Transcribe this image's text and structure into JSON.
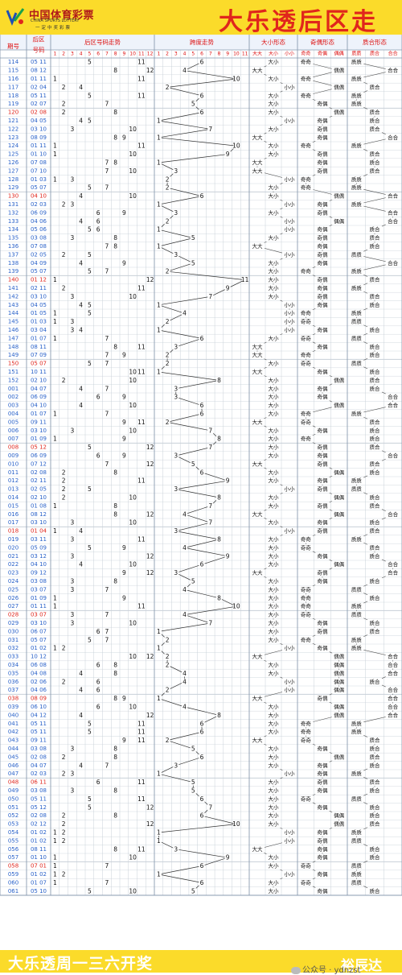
{
  "header": {
    "brand_cn": "中国体育彩票",
    "brand_en": "CHINA SPORTS LOTTERY",
    "slogan": "一定中奖彩票",
    "title": "大乐透后区走势"
  },
  "table": {
    "headers": {
      "period": "期号",
      "back": "后区号码",
      "trend": "后区号码走势",
      "span": "跨度走势",
      "size": "大小形态",
      "parity": "奇偶形态",
      "prime": "质合形态"
    },
    "trend_cols": [
      "1",
      "2",
      "3",
      "4",
      "5",
      "6",
      "7",
      "8",
      "9",
      "10",
      "11",
      "12"
    ],
    "span_cols": [
      "1",
      "2",
      "3",
      "4",
      "5",
      "6",
      "7",
      "8",
      "9",
      "10",
      "11"
    ],
    "size_cols": [
      "大大",
      "大小",
      "小小"
    ],
    "parity_cols": [
      "奇奇",
      "奇偶",
      "偶偶"
    ],
    "prime_cols": [
      "质质",
      "质合",
      "合合"
    ],
    "rows": [
      [
        "114",
        "05 11"
      ],
      [
        "115",
        "08 12"
      ],
      [
        "116",
        "01 11"
      ],
      [
        "117",
        "02 04"
      ],
      [
        "118",
        "05 11"
      ],
      [
        "119",
        "02 07"
      ],
      [
        "120",
        "02 08"
      ],
      [
        "121",
        "04 05"
      ],
      [
        "122",
        "03 10"
      ],
      [
        "123",
        "08 09"
      ],
      [
        "124",
        "01 11"
      ],
      [
        "125",
        "01 10"
      ],
      [
        "126",
        "07 08"
      ],
      [
        "127",
        "07 10"
      ],
      [
        "128",
        "01 03"
      ],
      [
        "129",
        "05 07"
      ],
      [
        "130",
        "04 10"
      ],
      [
        "131",
        "02 03"
      ],
      [
        "132",
        "06 09"
      ],
      [
        "133",
        "04 06"
      ],
      [
        "134",
        "05 06"
      ],
      [
        "135",
        "03 08"
      ],
      [
        "136",
        "07 08"
      ],
      [
        "137",
        "02 05"
      ],
      [
        "138",
        "04 09"
      ],
      [
        "139",
        "05 07"
      ],
      [
        "140",
        "01 12"
      ],
      [
        "141",
        "02 11"
      ],
      [
        "142",
        "03 10"
      ],
      [
        "143",
        "04 05"
      ],
      [
        "144",
        "01 05"
      ],
      [
        "145",
        "01 03"
      ],
      [
        "146",
        "03 04"
      ],
      [
        "147",
        "01 07"
      ],
      [
        "148",
        "08 11"
      ],
      [
        "149",
        "07 09"
      ],
      [
        "150",
        "05 07"
      ],
      [
        "151",
        "10 11"
      ],
      [
        "152",
        "02 10"
      ],
      [
        "001",
        "04 07"
      ],
      [
        "002",
        "06 09"
      ],
      [
        "003",
        "04 10"
      ],
      [
        "004",
        "01 07"
      ],
      [
        "005",
        "09 11"
      ],
      [
        "006",
        "03 10"
      ],
      [
        "007",
        "01 09"
      ],
      [
        "008",
        "05 12"
      ],
      [
        "009",
        "06 09"
      ],
      [
        "010",
        "07 12"
      ],
      [
        "011",
        "02 08"
      ],
      [
        "012",
        "02 11"
      ],
      [
        "013",
        "02 05"
      ],
      [
        "014",
        "02 10"
      ],
      [
        "015",
        "01 08"
      ],
      [
        "016",
        "08 12"
      ],
      [
        "017",
        "03 10"
      ],
      [
        "018",
        "01 04"
      ],
      [
        "019",
        "03 11"
      ],
      [
        "020",
        "05 09"
      ],
      [
        "021",
        "03 12"
      ],
      [
        "022",
        "04 10"
      ],
      [
        "023",
        "09 12"
      ],
      [
        "024",
        "03 08"
      ],
      [
        "025",
        "03 07"
      ],
      [
        "026",
        "01 09"
      ],
      [
        "027",
        "01 11"
      ],
      [
        "028",
        "03 07"
      ],
      [
        "029",
        "03 10"
      ],
      [
        "030",
        "06 07"
      ],
      [
        "031",
        "05 07"
      ],
      [
        "032",
        "01 02"
      ],
      [
        "033",
        "10 12"
      ],
      [
        "034",
        "06 08"
      ],
      [
        "035",
        "04 08"
      ],
      [
        "036",
        "02 06"
      ],
      [
        "037",
        "04 06"
      ],
      [
        "038",
        "08 09"
      ],
      [
        "039",
        "06 10"
      ],
      [
        "040",
        "04 12"
      ],
      [
        "041",
        "05 11"
      ],
      [
        "042",
        "05 11"
      ],
      [
        "043",
        "09 11"
      ],
      [
        "044",
        "03 08"
      ],
      [
        "045",
        "02 08"
      ],
      [
        "046",
        "04 07"
      ],
      [
        "047",
        "02 03"
      ],
      [
        "048",
        "06 11"
      ],
      [
        "049",
        "03 08"
      ],
      [
        "050",
        "05 11"
      ],
      [
        "051",
        "05 12"
      ],
      [
        "052",
        "02 08"
      ],
      [
        "053",
        "02 12"
      ],
      [
        "054",
        "01 02"
      ],
      [
        "055",
        "01 02"
      ],
      [
        "056",
        "08 11"
      ],
      [
        "057",
        "01 10"
      ],
      [
        "058",
        "07 01"
      ],
      [
        "059",
        "01 02"
      ],
      [
        "060",
        "01 07"
      ],
      [
        "061",
        "05 10"
      ]
    ],
    "red_periods": [
      "120",
      "130",
      "140",
      "150",
      "008",
      "018",
      "028",
      "038",
      "048",
      "058"
    ]
  },
  "colors": {
    "header_bg": "#fbdb2a",
    "title_red": "#e0261c",
    "grid_line": "#c8d0d8",
    "period_blue": "#2a62c9",
    "period_red": "#e0261c",
    "ball_blue": "#1e4fb5",
    "shade": "#e8edf5"
  },
  "footer": {
    "text": "大乐透周一三六开奖",
    "brand": "裕辰达",
    "wechat": "公众号 · ydnzst"
  }
}
